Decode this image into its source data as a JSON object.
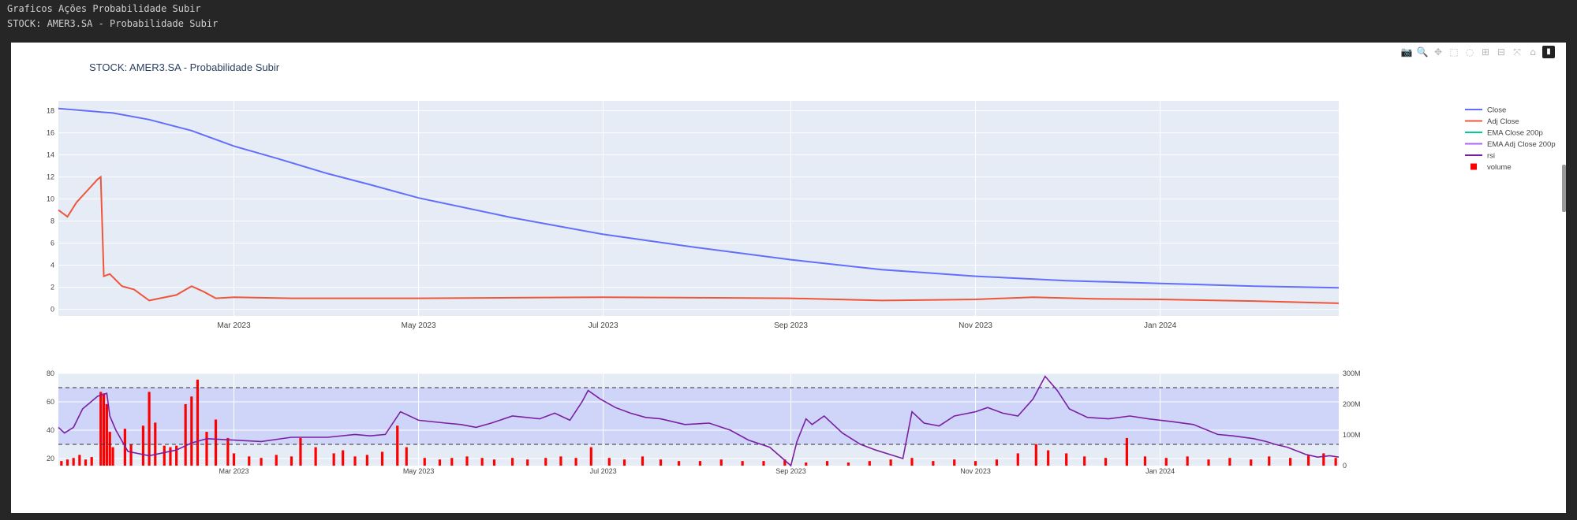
{
  "page": {
    "header_line1": "Graficos Ações Probabilidade Subir",
    "header_line2": "STOCK: AMER3.SA - Probabilidade Subir"
  },
  "modebar": {
    "icons": [
      "camera-icon",
      "zoom-icon",
      "pan-icon",
      "box-select-icon",
      "lasso-icon",
      "zoom-in-icon",
      "zoom-out-icon",
      "autoscale-icon",
      "reset-axes-icon",
      "plotly-logo-icon"
    ]
  },
  "colors": {
    "close": "#636efa",
    "adj_close": "#ef553b",
    "ema_close": "#00cc96",
    "ema_adj_close": "#ab63fa",
    "rsi": "#7b1fa2",
    "volume": "#ff0000",
    "plot_bg": "#e5ecf6",
    "rsi_band": "#cfd5f8"
  },
  "chart_data": [
    {
      "type": "line",
      "title": "STOCK: AMER3.SA - Probabilidade Subir",
      "x_tick_labels": [
        "Mar 2023",
        "May 2023",
        "Jul 2023",
        "Sep 2023",
        "Nov 2023",
        "Jan 2024"
      ],
      "x_tick_dates": [
        "2023-03-01",
        "2023-05-01",
        "2023-07-01",
        "2023-09-01",
        "2023-11-01",
        "2024-01-01"
      ],
      "xlim": [
        "2023-01-02",
        "2024-02-29"
      ],
      "ylim": [
        -0.6,
        18.9
      ],
      "y_ticks": [
        0,
        2,
        4,
        6,
        8,
        10,
        12,
        14,
        16,
        18
      ],
      "grid": true,
      "legend_position": "right",
      "legend": [
        "Close",
        "Adj Close",
        "EMA Close 200p",
        "EMA Adj Close 200p",
        "rsi",
        "volume"
      ],
      "series": [
        {
          "name": "Close",
          "points": [
            [
              "2023-01-02",
              18.2
            ],
            [
              "2023-01-20",
              17.8
            ],
            [
              "2023-02-01",
              17.2
            ],
            [
              "2023-02-15",
              16.2
            ],
            [
              "2023-03-01",
              14.8
            ],
            [
              "2023-03-15",
              13.7
            ],
            [
              "2023-04-01",
              12.3
            ],
            [
              "2023-04-15",
              11.3
            ],
            [
              "2023-05-01",
              10.1
            ],
            [
              "2023-06-01",
              8.3
            ],
            [
              "2023-07-01",
              6.8
            ],
            [
              "2023-08-01",
              5.6
            ],
            [
              "2023-09-01",
              4.5
            ],
            [
              "2023-10-01",
              3.6
            ],
            [
              "2023-11-01",
              3.0
            ],
            [
              "2023-12-01",
              2.6
            ],
            [
              "2024-01-01",
              2.35
            ],
            [
              "2024-02-01",
              2.1
            ],
            [
              "2024-02-29",
              1.95
            ]
          ]
        },
        {
          "name": "Adj Close",
          "points": [
            [
              "2023-01-02",
              9.0
            ],
            [
              "2023-01-05",
              8.4
            ],
            [
              "2023-01-08",
              9.7
            ],
            [
              "2023-01-12",
              10.9
            ],
            [
              "2023-01-15",
              11.8
            ],
            [
              "2023-01-16",
              12.0
            ],
            [
              "2023-01-17",
              3.0
            ],
            [
              "2023-01-19",
              3.2
            ],
            [
              "2023-01-23",
              2.1
            ],
            [
              "2023-01-27",
              1.8
            ],
            [
              "2023-02-01",
              0.8
            ],
            [
              "2023-02-10",
              1.3
            ],
            [
              "2023-02-15",
              2.1
            ],
            [
              "2023-02-19",
              1.6
            ],
            [
              "2023-02-23",
              1.0
            ],
            [
              "2023-03-01",
              1.1
            ],
            [
              "2023-03-20",
              1.0
            ],
            [
              "2023-04-10",
              1.0
            ],
            [
              "2023-05-01",
              1.0
            ],
            [
              "2023-06-01",
              1.05
            ],
            [
              "2023-07-01",
              1.1
            ],
            [
              "2023-08-01",
              1.05
            ],
            [
              "2023-09-01",
              1.0
            ],
            [
              "2023-10-01",
              0.8
            ],
            [
              "2023-11-01",
              0.9
            ],
            [
              "2023-11-20",
              1.1
            ],
            [
              "2023-12-10",
              0.95
            ],
            [
              "2024-01-01",
              0.9
            ],
            [
              "2024-02-01",
              0.75
            ],
            [
              "2024-02-29",
              0.55
            ]
          ]
        }
      ]
    },
    {
      "type": "line",
      "x_tick_labels": [
        "Mar 2023",
        "May 2023",
        "Jul 2023",
        "Sep 2023",
        "Nov 2023",
        "Jan 2024"
      ],
      "xlim": [
        "2023-01-02",
        "2024-02-29"
      ],
      "ylim": [
        15,
        80
      ],
      "y_ticks": [
        20,
        40,
        60,
        80
      ],
      "y2lim": [
        0,
        300
      ],
      "y2_tick_labels": [
        "0",
        "100M",
        "200M",
        "300M"
      ],
      "rsi_band": [
        30,
        70
      ],
      "series": [
        {
          "name": "rsi",
          "points": [
            [
              "2023-01-02",
              42
            ],
            [
              "2023-01-04",
              38
            ],
            [
              "2023-01-07",
              42
            ],
            [
              "2023-01-10",
              55
            ],
            [
              "2023-01-15",
              64
            ],
            [
              "2023-01-18",
              66
            ],
            [
              "2023-01-19",
              50
            ],
            [
              "2023-01-21",
              40
            ],
            [
              "2023-01-25",
              25
            ],
            [
              "2023-02-01",
              22
            ],
            [
              "2023-02-10",
              26
            ],
            [
              "2023-02-15",
              31
            ],
            [
              "2023-02-20",
              34
            ],
            [
              "2023-03-01",
              33
            ],
            [
              "2023-03-10",
              32
            ],
            [
              "2023-03-20",
              35
            ],
            [
              "2023-04-01",
              35
            ],
            [
              "2023-04-10",
              37
            ],
            [
              "2023-04-15",
              36
            ],
            [
              "2023-04-20",
              37
            ],
            [
              "2023-04-25",
              53
            ],
            [
              "2023-05-01",
              47
            ],
            [
              "2023-05-10",
              45
            ],
            [
              "2023-05-15",
              44
            ],
            [
              "2023-05-20",
              42
            ],
            [
              "2023-05-25",
              45
            ],
            [
              "2023-06-01",
              50
            ],
            [
              "2023-06-10",
              48
            ],
            [
              "2023-06-15",
              52
            ],
            [
              "2023-06-20",
              47
            ],
            [
              "2023-06-24",
              60
            ],
            [
              "2023-06-26",
              68
            ],
            [
              "2023-06-30",
              62
            ],
            [
              "2023-07-05",
              56
            ],
            [
              "2023-07-10",
              52
            ],
            [
              "2023-07-15",
              49
            ],
            [
              "2023-07-20",
              48
            ],
            [
              "2023-07-28",
              44
            ],
            [
              "2023-08-05",
              45
            ],
            [
              "2023-08-12",
              40
            ],
            [
              "2023-08-18",
              33
            ],
            [
              "2023-08-25",
              28
            ],
            [
              "2023-09-01",
              15
            ],
            [
              "2023-09-03",
              32
            ],
            [
              "2023-09-06",
              48
            ],
            [
              "2023-09-08",
              44
            ],
            [
              "2023-09-12",
              50
            ],
            [
              "2023-09-18",
              38
            ],
            [
              "2023-09-24",
              30
            ],
            [
              "2023-09-29",
              26
            ],
            [
              "2023-10-05",
              22
            ],
            [
              "2023-10-08",
              20
            ],
            [
              "2023-10-11",
              53
            ],
            [
              "2023-10-15",
              45
            ],
            [
              "2023-10-20",
              43
            ],
            [
              "2023-10-25",
              50
            ],
            [
              "2023-11-01",
              53
            ],
            [
              "2023-11-05",
              56
            ],
            [
              "2023-11-10",
              52
            ],
            [
              "2023-11-15",
              50
            ],
            [
              "2023-11-20",
              62
            ],
            [
              "2023-11-24",
              78
            ],
            [
              "2023-11-28",
              68
            ],
            [
              "2023-12-02",
              55
            ],
            [
              "2023-12-08",
              49
            ],
            [
              "2023-12-15",
              48
            ],
            [
              "2023-12-22",
              50
            ],
            [
              "2023-12-28",
              48
            ],
            [
              "2024-01-05",
              46
            ],
            [
              "2024-01-12",
              44
            ],
            [
              "2024-01-20",
              37
            ],
            [
              "2024-01-25",
              36
            ],
            [
              "2024-02-01",
              34
            ],
            [
              "2024-02-05",
              32
            ],
            [
              "2024-02-08",
              30
            ],
            [
              "2024-02-12",
              28
            ],
            [
              "2024-02-18",
              23
            ],
            [
              "2024-02-22",
              21
            ],
            [
              "2024-02-26",
              22
            ],
            [
              "2024-02-29",
              21
            ]
          ]
        },
        {
          "name": "volume",
          "bars": [
            [
              "2023-01-03",
              15
            ],
            [
              "2023-01-05",
              20
            ],
            [
              "2023-01-07",
              25
            ],
            [
              "2023-01-09",
              35
            ],
            [
              "2023-01-11",
              20
            ],
            [
              "2023-01-13",
              28
            ],
            [
              "2023-01-16",
              240
            ],
            [
              "2023-01-17",
              235
            ],
            [
              "2023-01-18",
              200
            ],
            [
              "2023-01-19",
              110
            ],
            [
              "2023-01-20",
              60
            ],
            [
              "2023-01-24",
              120
            ],
            [
              "2023-01-26",
              70
            ],
            [
              "2023-01-30",
              130
            ],
            [
              "2023-02-01",
              240
            ],
            [
              "2023-02-03",
              140
            ],
            [
              "2023-02-06",
              65
            ],
            [
              "2023-02-08",
              60
            ],
            [
              "2023-02-10",
              65
            ],
            [
              "2023-02-13",
              200
            ],
            [
              "2023-02-15",
              225
            ],
            [
              "2023-02-17",
              280
            ],
            [
              "2023-02-20",
              110
            ],
            [
              "2023-02-23",
              150
            ],
            [
              "2023-02-27",
              90
            ],
            [
              "2023-03-01",
              40
            ],
            [
              "2023-03-06",
              30
            ],
            [
              "2023-03-10",
              25
            ],
            [
              "2023-03-15",
              35
            ],
            [
              "2023-03-20",
              30
            ],
            [
              "2023-03-23",
              90
            ],
            [
              "2023-03-28",
              60
            ],
            [
              "2023-04-03",
              40
            ],
            [
              "2023-04-06",
              50
            ],
            [
              "2023-04-10",
              30
            ],
            [
              "2023-04-14",
              35
            ],
            [
              "2023-04-19",
              45
            ],
            [
              "2023-04-24",
              130
            ],
            [
              "2023-04-27",
              60
            ],
            [
              "2023-05-03",
              25
            ],
            [
              "2023-05-08",
              20
            ],
            [
              "2023-05-12",
              25
            ],
            [
              "2023-05-17",
              30
            ],
            [
              "2023-05-22",
              25
            ],
            [
              "2023-05-26",
              20
            ],
            [
              "2023-06-01",
              25
            ],
            [
              "2023-06-06",
              20
            ],
            [
              "2023-06-12",
              25
            ],
            [
              "2023-06-17",
              30
            ],
            [
              "2023-06-22",
              25
            ],
            [
              "2023-06-27",
              60
            ],
            [
              "2023-07-03",
              25
            ],
            [
              "2023-07-08",
              20
            ],
            [
              "2023-07-14",
              30
            ],
            [
              "2023-07-20",
              20
            ],
            [
              "2023-07-26",
              15
            ],
            [
              "2023-08-02",
              15
            ],
            [
              "2023-08-09",
              20
            ],
            [
              "2023-08-16",
              15
            ],
            [
              "2023-08-23",
              15
            ],
            [
              "2023-08-30",
              20
            ],
            [
              "2023-09-06",
              10
            ],
            [
              "2023-09-13",
              15
            ],
            [
              "2023-09-20",
              10
            ],
            [
              "2023-09-27",
              15
            ],
            [
              "2023-10-04",
              20
            ],
            [
              "2023-10-11",
              25
            ],
            [
              "2023-10-18",
              15
            ],
            [
              "2023-10-25",
              20
            ],
            [
              "2023-11-01",
              15
            ],
            [
              "2023-11-08",
              20
            ],
            [
              "2023-11-15",
              40
            ],
            [
              "2023-11-21",
              70
            ],
            [
              "2023-11-25",
              50
            ],
            [
              "2023-12-01",
              40
            ],
            [
              "2023-12-07",
              30
            ],
            [
              "2023-12-14",
              25
            ],
            [
              "2023-12-21",
              90
            ],
            [
              "2023-12-27",
              30
            ],
            [
              "2024-01-03",
              25
            ],
            [
              "2024-01-10",
              30
            ],
            [
              "2024-01-17",
              20
            ],
            [
              "2024-01-24",
              25
            ],
            [
              "2024-01-31",
              20
            ],
            [
              "2024-02-06",
              30
            ],
            [
              "2024-02-13",
              25
            ],
            [
              "2024-02-19",
              35
            ],
            [
              "2024-02-24",
              40
            ],
            [
              "2024-02-28",
              25
            ]
          ]
        }
      ]
    }
  ]
}
